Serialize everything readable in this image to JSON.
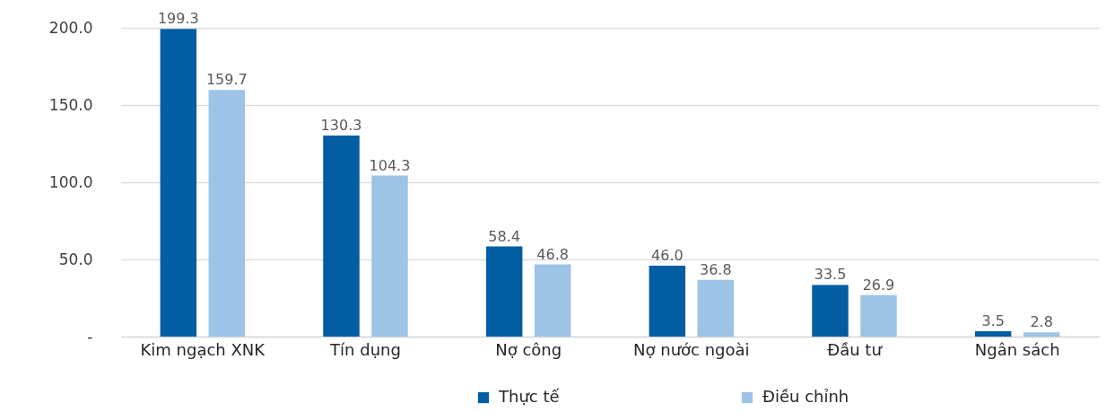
{
  "chart_data": {
    "type": "bar",
    "categories": [
      "Kim ngạch XNK",
      "Tín dụng",
      "Nợ công",
      "Nợ nước ngoài",
      "Đầu tư",
      "Ngân sách"
    ],
    "series": [
      {
        "name": "Thực tế",
        "color": "#035da3",
        "values": [
          199.3,
          130.3,
          58.4,
          46.0,
          33.5,
          3.5
        ],
        "value_labels": [
          "199.3",
          "130.3",
          "58.4",
          "46.0",
          "33.5",
          "3.5"
        ]
      },
      {
        "name": "Điều chỉnh",
        "color": "#9dc3e6",
        "values": [
          159.7,
          104.3,
          46.8,
          36.8,
          26.9,
          2.8
        ],
        "value_labels": [
          "159.7",
          "104.3",
          "46.8",
          "36.8",
          "26.9",
          "2.8"
        ]
      }
    ],
    "ylim": [
      0,
      200
    ],
    "yticks": [
      {
        "value": 0,
        "label": "-"
      },
      {
        "value": 50,
        "label": "50.0"
      },
      {
        "value": 100,
        "label": "100.0"
      },
      {
        "value": 150,
        "label": "150.0"
      },
      {
        "value": 200,
        "label": "200.0"
      }
    ],
    "grid": "y",
    "legend": "bottom"
  }
}
